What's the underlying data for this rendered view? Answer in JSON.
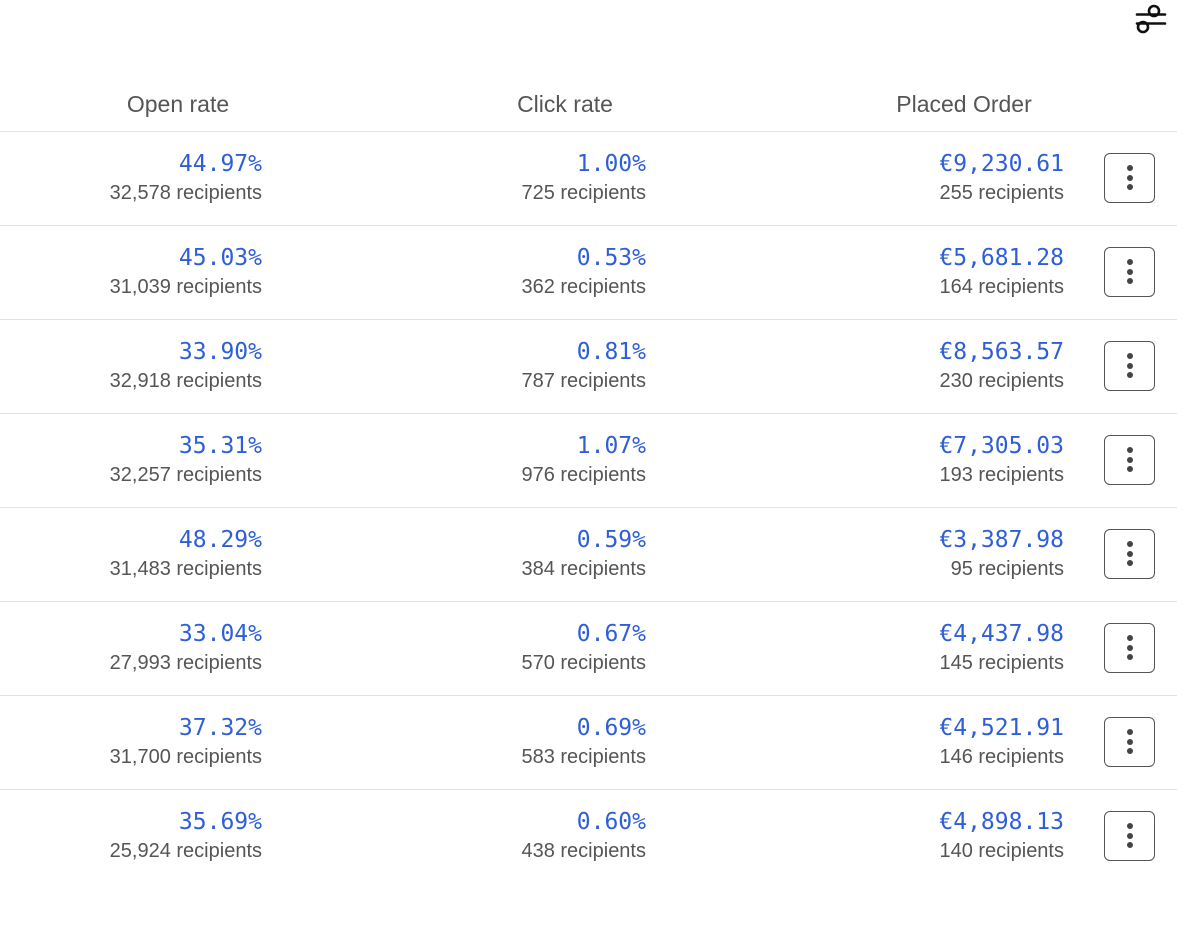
{
  "toolbar": {
    "settings_icon": "sliders-icon"
  },
  "columns": {
    "open_rate": "Open rate",
    "click_rate": "Click rate",
    "placed_order": "Placed Order"
  },
  "rows": [
    {
      "open_rate": "44.97%",
      "open_recipients": "32,578 recipients",
      "click_rate": "1.00%",
      "click_recipients": "725 recipients",
      "placed_order": "€9,230.61",
      "order_recipients": "255 recipients"
    },
    {
      "open_rate": "45.03%",
      "open_recipients": "31,039 recipients",
      "click_rate": "0.53%",
      "click_recipients": "362 recipients",
      "placed_order": "€5,681.28",
      "order_recipients": "164 recipients"
    },
    {
      "open_rate": "33.90%",
      "open_recipients": "32,918 recipients",
      "click_rate": "0.81%",
      "click_recipients": "787 recipients",
      "placed_order": "€8,563.57",
      "order_recipients": "230 recipients"
    },
    {
      "open_rate": "35.31%",
      "open_recipients": "32,257 recipients",
      "click_rate": "1.07%",
      "click_recipients": "976 recipients",
      "placed_order": "€7,305.03",
      "order_recipients": "193 recipients"
    },
    {
      "open_rate": "48.29%",
      "open_recipients": "31,483 recipients",
      "click_rate": "0.59%",
      "click_recipients": "384 recipients",
      "placed_order": "€3,387.98",
      "order_recipients": "95 recipients"
    },
    {
      "open_rate": "33.04%",
      "open_recipients": "27,993 recipients",
      "click_rate": "0.67%",
      "click_recipients": "570 recipients",
      "placed_order": "€4,437.98",
      "order_recipients": "145 recipients"
    },
    {
      "open_rate": "37.32%",
      "open_recipients": "31,700 recipients",
      "click_rate": "0.69%",
      "click_recipients": "583 recipients",
      "placed_order": "€4,521.91",
      "order_recipients": "146 recipients"
    },
    {
      "open_rate": "35.69%",
      "open_recipients": "25,924 recipients",
      "click_rate": "0.60%",
      "click_recipients": "438 recipients",
      "placed_order": "€4,898.13",
      "order_recipients": "140 recipients"
    }
  ],
  "row_menu_icon": "more-vertical-icon",
  "colors": {
    "value": "#2f5fd6",
    "text": "#555555",
    "divider": "#e2e2e2"
  }
}
